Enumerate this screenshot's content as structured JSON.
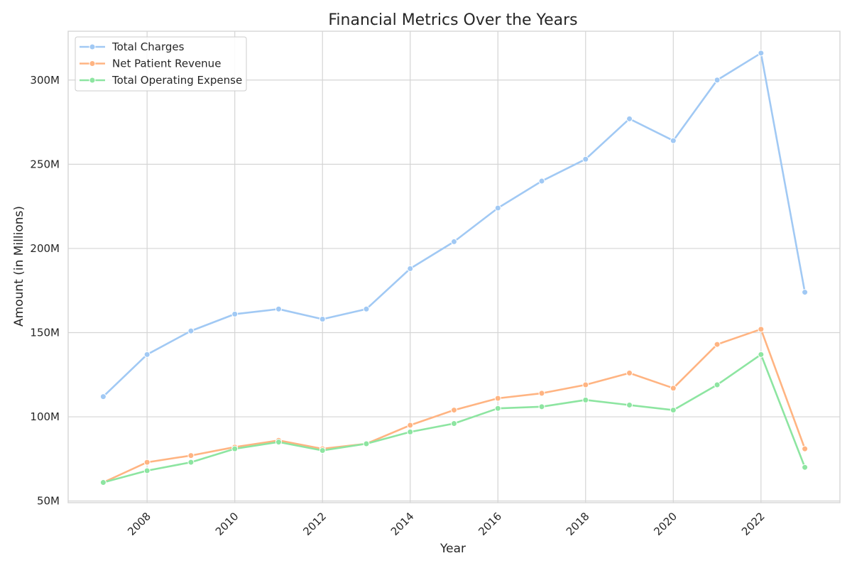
{
  "chart_data": {
    "type": "line",
    "title": "Financial Metrics Over the Years",
    "xlabel": "Year",
    "ylabel": "Amount (in Millions)",
    "x": [
      2007,
      2008,
      2009,
      2010,
      2011,
      2012,
      2013,
      2014,
      2015,
      2016,
      2017,
      2018,
      2019,
      2020,
      2021,
      2022,
      2023
    ],
    "xticks": [
      "2008",
      "2010",
      "2012",
      "2014",
      "2016",
      "2018",
      "2020",
      "2022"
    ],
    "yticks": [
      "50M",
      "100M",
      "150M",
      "200M",
      "250M",
      "300M"
    ],
    "xlim": [
      2006.2,
      2023.8
    ],
    "ylim": [
      49,
      329
    ],
    "grid": true,
    "legend_position": "top-left",
    "series": [
      {
        "name": "Total Charges",
        "color": "#a1c9f4",
        "values": [
          112,
          137,
          151,
          161,
          164,
          158,
          164,
          188,
          204,
          224,
          240,
          253,
          277,
          264,
          300,
          316,
          174
        ]
      },
      {
        "name": "Net Patient Revenue",
        "color": "#ffb482",
        "values": [
          61,
          73,
          77,
          82,
          86,
          81,
          84,
          95,
          104,
          111,
          114,
          119,
          126,
          117,
          143,
          152,
          81
        ]
      },
      {
        "name": "Total Operating Expense",
        "color": "#8de5a1",
        "values": [
          61,
          68,
          73,
          81,
          85,
          80,
          84,
          91,
          96,
          105,
          106,
          110,
          107,
          104,
          119,
          137,
          70
        ]
      }
    ]
  }
}
